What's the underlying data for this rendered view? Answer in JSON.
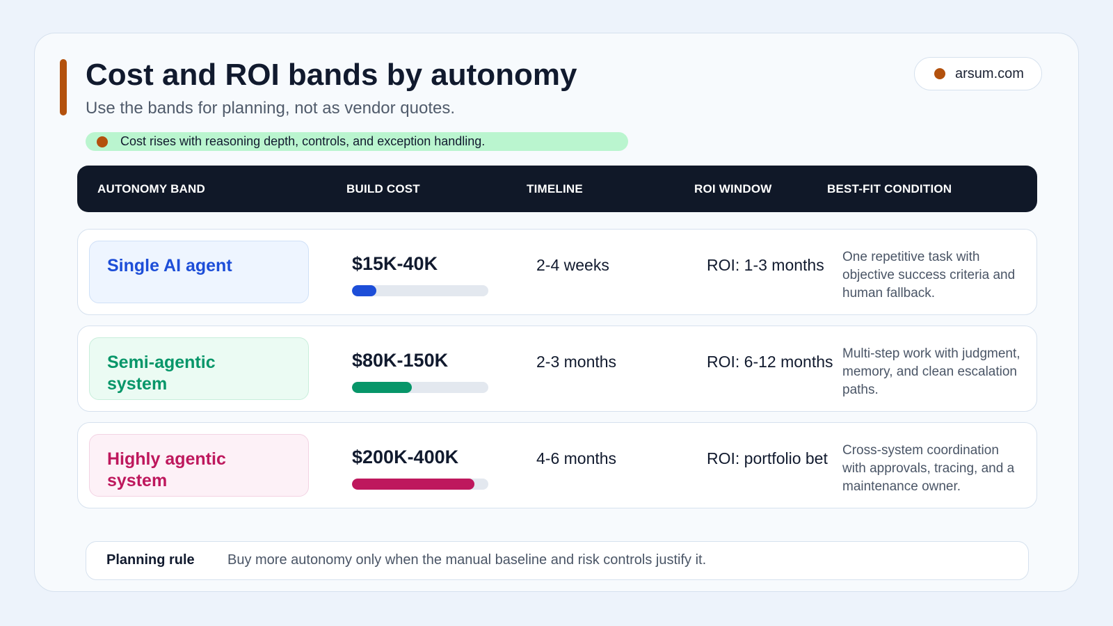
{
  "header": {
    "title": "Cost and ROI bands by autonomy",
    "subtitle": "Use the bands for planning, not as vendor quotes.",
    "site": "arsum.com",
    "callout": "Cost rises with reasoning depth, controls, and exception handling."
  },
  "colors": {
    "accent": "#b3510d",
    "header_bg": "#101828",
    "callout_bg": "#baf5cf"
  },
  "table": {
    "columns": [
      "AUTONOMY BAND",
      "BUILD COST",
      "TIMELINE",
      "ROI WINDOW",
      "BEST-FIT CONDITION"
    ],
    "rows": [
      {
        "band": "Single AI agent",
        "cost": "$15K-40K",
        "cost_bar_fraction": 0.18,
        "timeline": "2-4 weeks",
        "roi": "ROI: 1-3 months",
        "condition": "One repetitive task with objective success criteria and human fallback.",
        "color": "#1d4ed8",
        "tint": "#eef5ff",
        "tint_border": "#cfe0f7"
      },
      {
        "band": "Semi-agentic system",
        "cost": "$80K-150K",
        "cost_bar_fraction": 0.44,
        "timeline": "2-3 months",
        "roi": "ROI: 6-12 months",
        "condition": "Multi-step work with judgment, memory, and clean escalation paths.",
        "color": "#079669",
        "tint": "#ebfbf3",
        "tint_border": "#c8eedb"
      },
      {
        "band": "Highly agentic system",
        "cost": "$200K-400K",
        "cost_bar_fraction": 0.9,
        "timeline": "4-6 months",
        "roi": "ROI: portfolio bet",
        "condition": "Cross-system coordination with approvals, tracing, and a maintenance owner.",
        "color": "#be185d",
        "tint": "#fdf1f7",
        "tint_border": "#f3d3e3"
      }
    ]
  },
  "planning_rule": {
    "label": "Planning rule",
    "text": "Buy more autonomy only when the manual baseline and risk controls justify it."
  }
}
